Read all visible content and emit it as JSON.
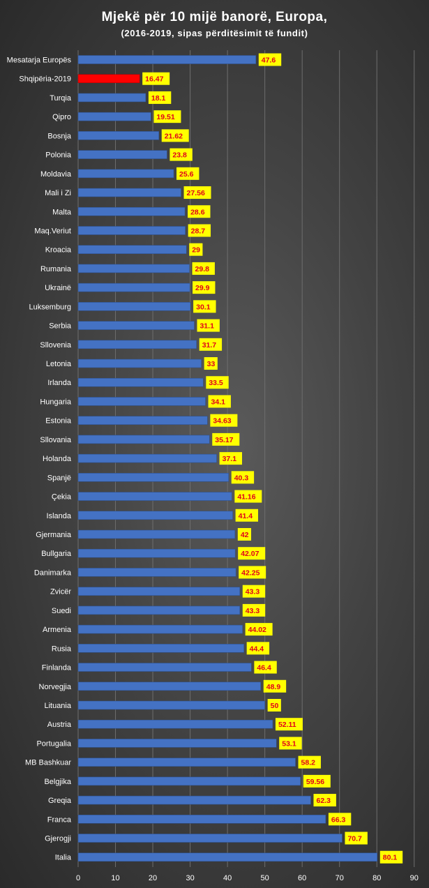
{
  "chart_data": {
    "type": "bar",
    "orientation": "horizontal",
    "title": "Mjekë për 10 mijë banorë, Europa,",
    "subtitle": "(2016-2019, sipas përditësimit të fundit)",
    "xlim": [
      0,
      90
    ],
    "xticks": [
      "0",
      "10",
      "20",
      "30",
      "40",
      "50",
      "60",
      "70",
      "80",
      "90"
    ],
    "grid": true,
    "bar_color": "#4472c4",
    "highlight_color": "#ff0000",
    "label_bg": "#ffff00",
    "label_color": "#e0001a",
    "highlight_index": 1,
    "categories": [
      "Mesatarja Europës",
      "Shqipëria-2019",
      "Turqia",
      "Qipro",
      "Bosnja",
      "Polonia",
      "Moldavia",
      "Mali i Zi",
      "Malta",
      "Maq.Veriut",
      "Kroacia",
      "Rumania",
      "Ukrainë",
      "Luksemburg",
      "Serbia",
      "Sllovenia",
      "Letonia",
      "Irlanda",
      "Hungaria",
      "Estonia",
      "Sllovania",
      "Holanda",
      "Spanjë",
      "Çekia",
      "Islanda",
      "Gjermania",
      "Bullgaria",
      "Danimarka",
      "Zvicër",
      "Suedi",
      "Armenia",
      "Rusia",
      "Finlanda",
      "Norvegjia",
      "Lituania",
      "Austria",
      "Portugalia",
      "MB Bashkuar",
      "Belgjika",
      "Greqia",
      "Franca",
      "Gjerogji",
      "Italia"
    ],
    "labels": [
      "47.6",
      "16.47",
      "18.1",
      "19.51",
      "21.62",
      "23.8",
      "25.6",
      "27.56",
      "28.6",
      "28.7",
      "29",
      "29.8",
      "29.9",
      "30.1",
      "31.1",
      "31.7",
      "33",
      "33.5",
      "34.1",
      "34.63",
      "35.17",
      "37.1",
      "40.3",
      "41.16",
      "41.4",
      "42",
      "42.07",
      "42.25",
      "43.3",
      "43.3",
      "44.02",
      "44.4",
      "46.4",
      "48.9",
      "50",
      "52.11",
      "53.1",
      "58.2",
      "59.56",
      "62.3",
      "66.3",
      "70.7",
      "80.1"
    ],
    "values": [
      47.6,
      16.47,
      18.1,
      19.51,
      21.62,
      23.8,
      25.6,
      27.56,
      28.6,
      28.7,
      29,
      29.8,
      29.9,
      30.1,
      31.1,
      31.7,
      33,
      33.5,
      34.1,
      34.63,
      35.17,
      37.1,
      40.3,
      41.16,
      41.4,
      42,
      42.07,
      42.25,
      43.3,
      43.3,
      44.02,
      44.4,
      46.4,
      48.9,
      50,
      52.11,
      53.1,
      58.2,
      59.56,
      62.3,
      66.3,
      70.7,
      80.1
    ]
  }
}
